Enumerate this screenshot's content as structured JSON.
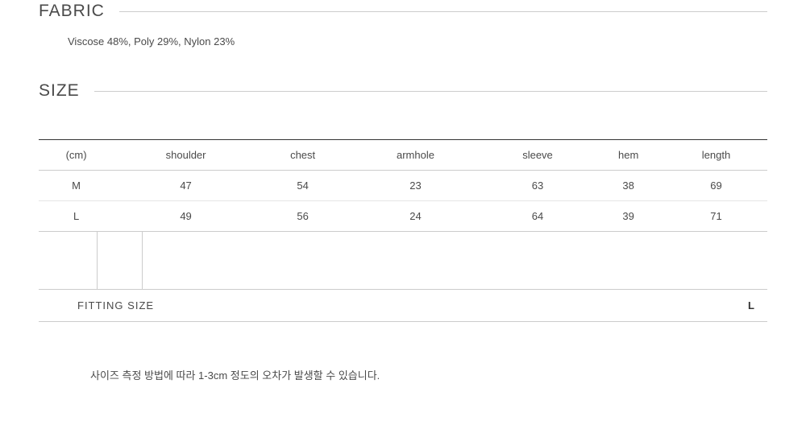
{
  "fabric": {
    "heading": "FABRIC",
    "composition": "Viscose 48%, Poly 29%, Nylon 23%"
  },
  "size": {
    "heading": "SIZE",
    "columns": [
      "(cm)",
      "shoulder",
      "chest",
      "armhole",
      "sleeve",
      "hem",
      "length"
    ],
    "rows": [
      {
        "label": "M",
        "values": [
          "47",
          "54",
          "23",
          "63",
          "38",
          "69"
        ]
      },
      {
        "label": "L",
        "values": [
          "49",
          "56",
          "24",
          "64",
          "39",
          "71"
        ]
      }
    ],
    "fitting": {
      "label": "FITTING SIZE",
      "value": "L"
    },
    "footnote": "사이즈 측정 방법에 따라 1-3cm 정도의 오차가 발생할 수 있습니다."
  },
  "styling": {
    "body_width": 1000,
    "body_height": 528,
    "heading_fontsize": 21,
    "body_fontsize": 13,
    "text_color": "#4a4a4a",
    "border_color_dark": "#333333",
    "border_color_light": "#cccccc",
    "border_color_row": "#e5e5e5",
    "background_color": "#ffffff"
  }
}
